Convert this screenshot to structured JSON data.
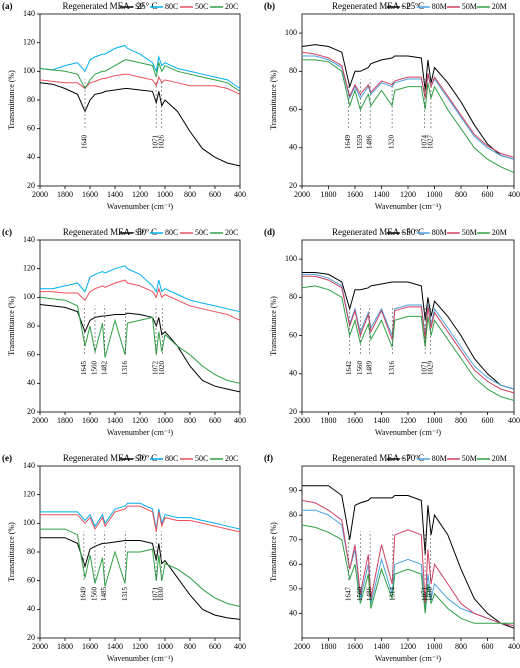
{
  "chart_data": [
    {
      "type": "line",
      "label": "(a)",
      "title": "Regenerated MEA - 25° C",
      "xlabel": "Wavenumber (cm⁻¹)",
      "ylabel": "Transmittance (%)",
      "xlim": [
        2000,
        400
      ],
      "xticks": [
        2000,
        1800,
        1600,
        1400,
        1200,
        1000,
        800,
        600,
        400
      ],
      "ylim": [
        20,
        140
      ],
      "yticks": [
        20,
        40,
        60,
        80,
        100,
        120,
        140
      ],
      "x": [
        2000,
        1900,
        1800,
        1700,
        1640,
        1600,
        1560,
        1500,
        1480,
        1400,
        1320,
        1300,
        1200,
        1100,
        1070,
        1050,
        1026,
        1000,
        900,
        800,
        700,
        600,
        500,
        400
      ],
      "peaks": [
        1640,
        1071,
        1026
      ],
      "series": [
        {
          "name": "SP",
          "color": "#000000",
          "values": [
            92,
            91,
            88,
            84,
            72,
            80,
            84,
            85,
            86,
            87,
            88,
            88,
            87,
            86,
            78,
            86,
            76,
            80,
            72,
            58,
            46,
            40,
            36,
            34
          ]
        },
        {
          "name": "80C",
          "color": "#00aeef",
          "values": [
            102,
            101,
            104,
            106,
            100,
            108,
            110,
            112,
            112,
            116,
            118,
            116,
            112,
            106,
            100,
            110,
            104,
            106,
            102,
            100,
            98,
            96,
            94,
            88
          ]
        },
        {
          "name": "50C",
          "color": "#e8505b",
          "values": [
            94,
            93,
            92,
            92,
            88,
            92,
            93,
            95,
            95,
            97,
            98,
            98,
            96,
            94,
            90,
            96,
            92,
            94,
            92,
            90,
            90,
            90,
            88,
            84
          ]
        },
        {
          "name": "20C",
          "color": "#2ea043",
          "values": [
            102,
            101,
            100,
            98,
            88,
            94,
            98,
            100,
            100,
            104,
            108,
            108,
            106,
            104,
            96,
            106,
            100,
            104,
            100,
            98,
            96,
            94,
            92,
            86
          ]
        }
      ]
    },
    {
      "type": "line",
      "label": "(b)",
      "title": "Regenerated MEA - 25ºC",
      "xlabel": "Wavenumber (cm⁻¹)",
      "ylabel": "Transmittance (%)",
      "xlim": [
        2000,
        400
      ],
      "xticks": [
        2000,
        1800,
        1600,
        1400,
        1200,
        1000,
        800,
        600,
        400
      ],
      "ylim": [
        20,
        110
      ],
      "yticks": [
        20,
        40,
        60,
        80,
        100
      ],
      "x": [
        2000,
        1900,
        1800,
        1700,
        1640,
        1600,
        1560,
        1500,
        1480,
        1400,
        1320,
        1300,
        1200,
        1100,
        1070,
        1050,
        1026,
        1000,
        900,
        800,
        700,
        600,
        500,
        400
      ],
      "peaks": [
        1649,
        1559,
        1486,
        1320,
        1027,
        1074
      ],
      "series": [
        {
          "name": "SP",
          "color": "#000000",
          "values": [
            93,
            94,
            93,
            90,
            72,
            80,
            80,
            82,
            84,
            86,
            87,
            88,
            88,
            87,
            70,
            86,
            74,
            82,
            74,
            64,
            52,
            42,
            36,
            34
          ]
        },
        {
          "name": "80M",
          "color": "#4aa3df",
          "values": [
            88,
            88,
            86,
            82,
            66,
            72,
            66,
            72,
            68,
            74,
            72,
            74,
            76,
            76,
            66,
            78,
            72,
            76,
            66,
            56,
            46,
            40,
            36,
            34
          ]
        },
        {
          "name": "50M",
          "color": "#d04060",
          "values": [
            90,
            89,
            87,
            83,
            67,
            73,
            68,
            73,
            69,
            75,
            73,
            75,
            77,
            77,
            66,
            79,
            72,
            77,
            67,
            57,
            47,
            41,
            37,
            35
          ]
        },
        {
          "name": "20M",
          "color": "#2ea043",
          "values": [
            86,
            86,
            85,
            80,
            62,
            70,
            60,
            68,
            62,
            70,
            62,
            70,
            72,
            72,
            60,
            74,
            66,
            72,
            60,
            50,
            40,
            34,
            30,
            27
          ]
        }
      ]
    },
    {
      "type": "line",
      "label": "(c)",
      "title": "Regenerated MEA - 50º C",
      "xlabel": "Wavenumber (cm⁻¹)",
      "ylabel": "Transmittance (%)",
      "xlim": [
        2000,
        400
      ],
      "xticks": [
        2000,
        1800,
        1600,
        1400,
        1200,
        1000,
        800,
        600,
        400
      ],
      "ylim": [
        20,
        140
      ],
      "yticks": [
        20,
        40,
        60,
        80,
        100,
        120,
        140
      ],
      "x": [
        2000,
        1900,
        1800,
        1700,
        1640,
        1600,
        1560,
        1500,
        1480,
        1400,
        1320,
        1300,
        1200,
        1100,
        1070,
        1050,
        1026,
        1000,
        900,
        800,
        700,
        600,
        500,
        400
      ],
      "peaks": [
        1645,
        1560,
        1482,
        1316,
        1072,
        1020
      ],
      "series": [
        {
          "name": "SP",
          "color": "#000000",
          "values": [
            95,
            94,
            93,
            90,
            76,
            84,
            86,
            87,
            87,
            88,
            88,
            89,
            88,
            86,
            80,
            86,
            74,
            76,
            66,
            52,
            42,
            38,
            36,
            34
          ]
        },
        {
          "name": "80C",
          "color": "#00aeef",
          "values": [
            106,
            106,
            108,
            110,
            104,
            114,
            116,
            118,
            117,
            120,
            122,
            120,
            116,
            108,
            104,
            112,
            104,
            106,
            102,
            98,
            96,
            94,
            92,
            90
          ]
        },
        {
          "name": "50C",
          "color": "#e8505b",
          "values": [
            104,
            104,
            103,
            103,
            98,
            104,
            106,
            108,
            107,
            110,
            112,
            110,
            108,
            104,
            100,
            106,
            100,
            102,
            98,
            94,
            92,
            90,
            88,
            84
          ]
        },
        {
          "name": "20C",
          "color": "#2ea043",
          "values": [
            100,
            99,
            98,
            94,
            66,
            80,
            62,
            82,
            58,
            84,
            60,
            82,
            84,
            86,
            60,
            76,
            62,
            74,
            66,
            60,
            52,
            46,
            42,
            40
          ]
        }
      ]
    },
    {
      "type": "line",
      "label": "(d)",
      "title": "Regenerated MEA - 50ºC",
      "xlabel": "Wavenumber (cm⁻¹)",
      "ylabel": "Transmittance (%)",
      "xlim": [
        2000,
        400
      ],
      "xticks": [
        2000,
        1800,
        1600,
        1400,
        1200,
        1000,
        800,
        600,
        400
      ],
      "ylim": [
        20,
        110
      ],
      "yticks": [
        20,
        40,
        60,
        80,
        100
      ],
      "x": [
        2000,
        1900,
        1800,
        1700,
        1640,
        1600,
        1560,
        1500,
        1480,
        1400,
        1320,
        1300,
        1200,
        1100,
        1070,
        1050,
        1026,
        1000,
        900,
        800,
        700,
        600,
        500,
        400
      ],
      "peaks": [
        1642,
        1560,
        1489,
        1316,
        1029,
        1071
      ],
      "series": [
        {
          "name": "SP",
          "color": "#000000",
          "values": [
            93,
            93,
            92,
            88,
            74,
            84,
            84,
            85,
            86,
            87,
            88,
            88,
            88,
            86,
            68,
            80,
            70,
            78,
            70,
            60,
            48,
            40,
            34,
            32
          ]
        },
        {
          "name": "80M",
          "color": "#4aa3df",
          "values": [
            92,
            92,
            90,
            86,
            66,
            74,
            62,
            72,
            64,
            74,
            60,
            74,
            76,
            76,
            60,
            76,
            66,
            74,
            64,
            54,
            44,
            38,
            34,
            32
          ]
        },
        {
          "name": "50M",
          "color": "#d04060",
          "values": [
            91,
            91,
            89,
            85,
            65,
            73,
            60,
            71,
            62,
            73,
            58,
            73,
            75,
            75,
            58,
            75,
            64,
            72,
            62,
            52,
            42,
            36,
            32,
            30
          ]
        },
        {
          "name": "20M",
          "color": "#2ea043",
          "values": [
            85,
            86,
            84,
            80,
            60,
            68,
            56,
            66,
            58,
            68,
            54,
            68,
            70,
            70,
            54,
            70,
            60,
            68,
            58,
            48,
            38,
            32,
            28,
            26
          ]
        }
      ]
    },
    {
      "type": "line",
      "label": "(e)",
      "title": "Regenerated MEA - 70º C",
      "xlabel": "Wavenumber (cm⁻¹)",
      "ylabel": "Transmittance (%)",
      "xlim": [
        2000,
        400
      ],
      "xticks": [
        2000,
        1800,
        1600,
        1400,
        1200,
        1000,
        800,
        600,
        400
      ],
      "ylim": [
        20,
        140
      ],
      "yticks": [
        20,
        40,
        60,
        80,
        100,
        120,
        140
      ],
      "x": [
        2000,
        1900,
        1800,
        1700,
        1640,
        1600,
        1560,
        1500,
        1480,
        1400,
        1320,
        1300,
        1200,
        1100,
        1070,
        1050,
        1026,
        1000,
        900,
        800,
        700,
        600,
        500,
        400
      ],
      "peaks": [
        1649,
        1560,
        1485,
        1315,
        1071,
        1030
      ],
      "series": [
        {
          "name": "SP",
          "color": "#000000",
          "values": [
            90,
            90,
            90,
            86,
            70,
            82,
            84,
            86,
            86,
            87,
            88,
            88,
            88,
            86,
            74,
            86,
            72,
            74,
            62,
            50,
            40,
            36,
            34,
            33
          ]
        },
        {
          "name": "80C",
          "color": "#00aeef",
          "values": [
            108,
            108,
            108,
            108,
            102,
            106,
            98,
            106,
            100,
            110,
            112,
            114,
            114,
            110,
            96,
            110,
            100,
            106,
            104,
            104,
            102,
            100,
            98,
            96
          ]
        },
        {
          "name": "50C",
          "color": "#e8505b",
          "values": [
            106,
            106,
            106,
            106,
            100,
            104,
            96,
            104,
            98,
            108,
            110,
            112,
            112,
            108,
            94,
            108,
            98,
            104,
            102,
            102,
            100,
            98,
            96,
            94
          ]
        },
        {
          "name": "20C",
          "color": "#2ea043",
          "values": [
            96,
            96,
            96,
            92,
            62,
            78,
            58,
            76,
            56,
            80,
            58,
            80,
            80,
            82,
            60,
            78,
            60,
            72,
            68,
            62,
            54,
            48,
            44,
            42
          ]
        }
      ]
    },
    {
      "type": "line",
      "label": "(f)",
      "title": "Regenerated MEA - 70ºC",
      "xlabel": "Wavenumber (cm⁻¹)",
      "ylabel": "Transmittance (%)",
      "xlim": [
        2000,
        400
      ],
      "xticks": [
        2000,
        1800,
        1600,
        1400,
        1200,
        1000,
        800,
        600,
        400
      ],
      "ylim": [
        30,
        100
      ],
      "yticks": [
        40,
        50,
        60,
        70,
        80,
        90
      ],
      "x": [
        2000,
        1900,
        1800,
        1700,
        1640,
        1600,
        1560,
        1500,
        1480,
        1400,
        1320,
        1300,
        1200,
        1100,
        1070,
        1050,
        1026,
        1000,
        900,
        800,
        700,
        600,
        500,
        400
      ],
      "peaks": [
        1647,
        1560,
        1486,
        1314,
        1030,
        1071
      ],
      "series": [
        {
          "name": "SP",
          "color": "#000000",
          "values": [
            92,
            92,
            92,
            88,
            70,
            84,
            85,
            86,
            87,
            87,
            87,
            88,
            88,
            86,
            64,
            84,
            72,
            80,
            72,
            58,
            46,
            40,
            36,
            34
          ]
        },
        {
          "name": "80M",
          "color": "#4aa3df",
          "values": [
            82,
            82,
            80,
            76,
            58,
            66,
            46,
            60,
            44,
            62,
            48,
            60,
            62,
            60,
            42,
            56,
            46,
            52,
            46,
            42,
            40,
            38,
            36,
            35
          ]
        },
        {
          "name": "50M",
          "color": "#d04060",
          "values": [
            86,
            85,
            82,
            78,
            58,
            68,
            48,
            64,
            46,
            68,
            52,
            72,
            74,
            72,
            44,
            66,
            52,
            60,
            52,
            44,
            40,
            38,
            36,
            35
          ]
        },
        {
          "name": "20M",
          "color": "#2ea043",
          "values": [
            76,
            75,
            73,
            70,
            54,
            60,
            44,
            56,
            42,
            58,
            46,
            56,
            58,
            56,
            40,
            52,
            44,
            48,
            42,
            38,
            36,
            36,
            36,
            36
          ]
        }
      ]
    }
  ]
}
